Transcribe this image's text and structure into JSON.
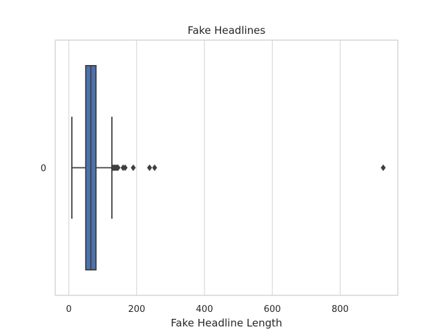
{
  "chart_data": {
    "type": "boxplot",
    "orientation": "horizontal",
    "title": "Fake Headlines",
    "xlabel": "Fake Headline Length",
    "ylabel": "",
    "xlim": [
      -40,
      970
    ],
    "x_ticks": [
      0,
      200,
      400,
      600,
      800
    ],
    "x_tick_labels": [
      "0",
      "200",
      "400",
      "600",
      "800"
    ],
    "categories": [
      "0"
    ],
    "grid": "vertical",
    "series": [
      {
        "category": "0",
        "whisker_low": 9,
        "q1": 50,
        "median": 65,
        "q3": 80,
        "whisker_high": 127,
        "outliers": [
          130,
          133,
          136,
          139,
          142,
          145,
          160,
          166,
          190,
          238,
          253,
          927
        ]
      }
    ],
    "colors": {
      "box_fill": "#4c72b0",
      "line": "#3f3f3f",
      "grid": "#d9d9d9",
      "spine": "#cccccc",
      "text": "#262626"
    }
  }
}
